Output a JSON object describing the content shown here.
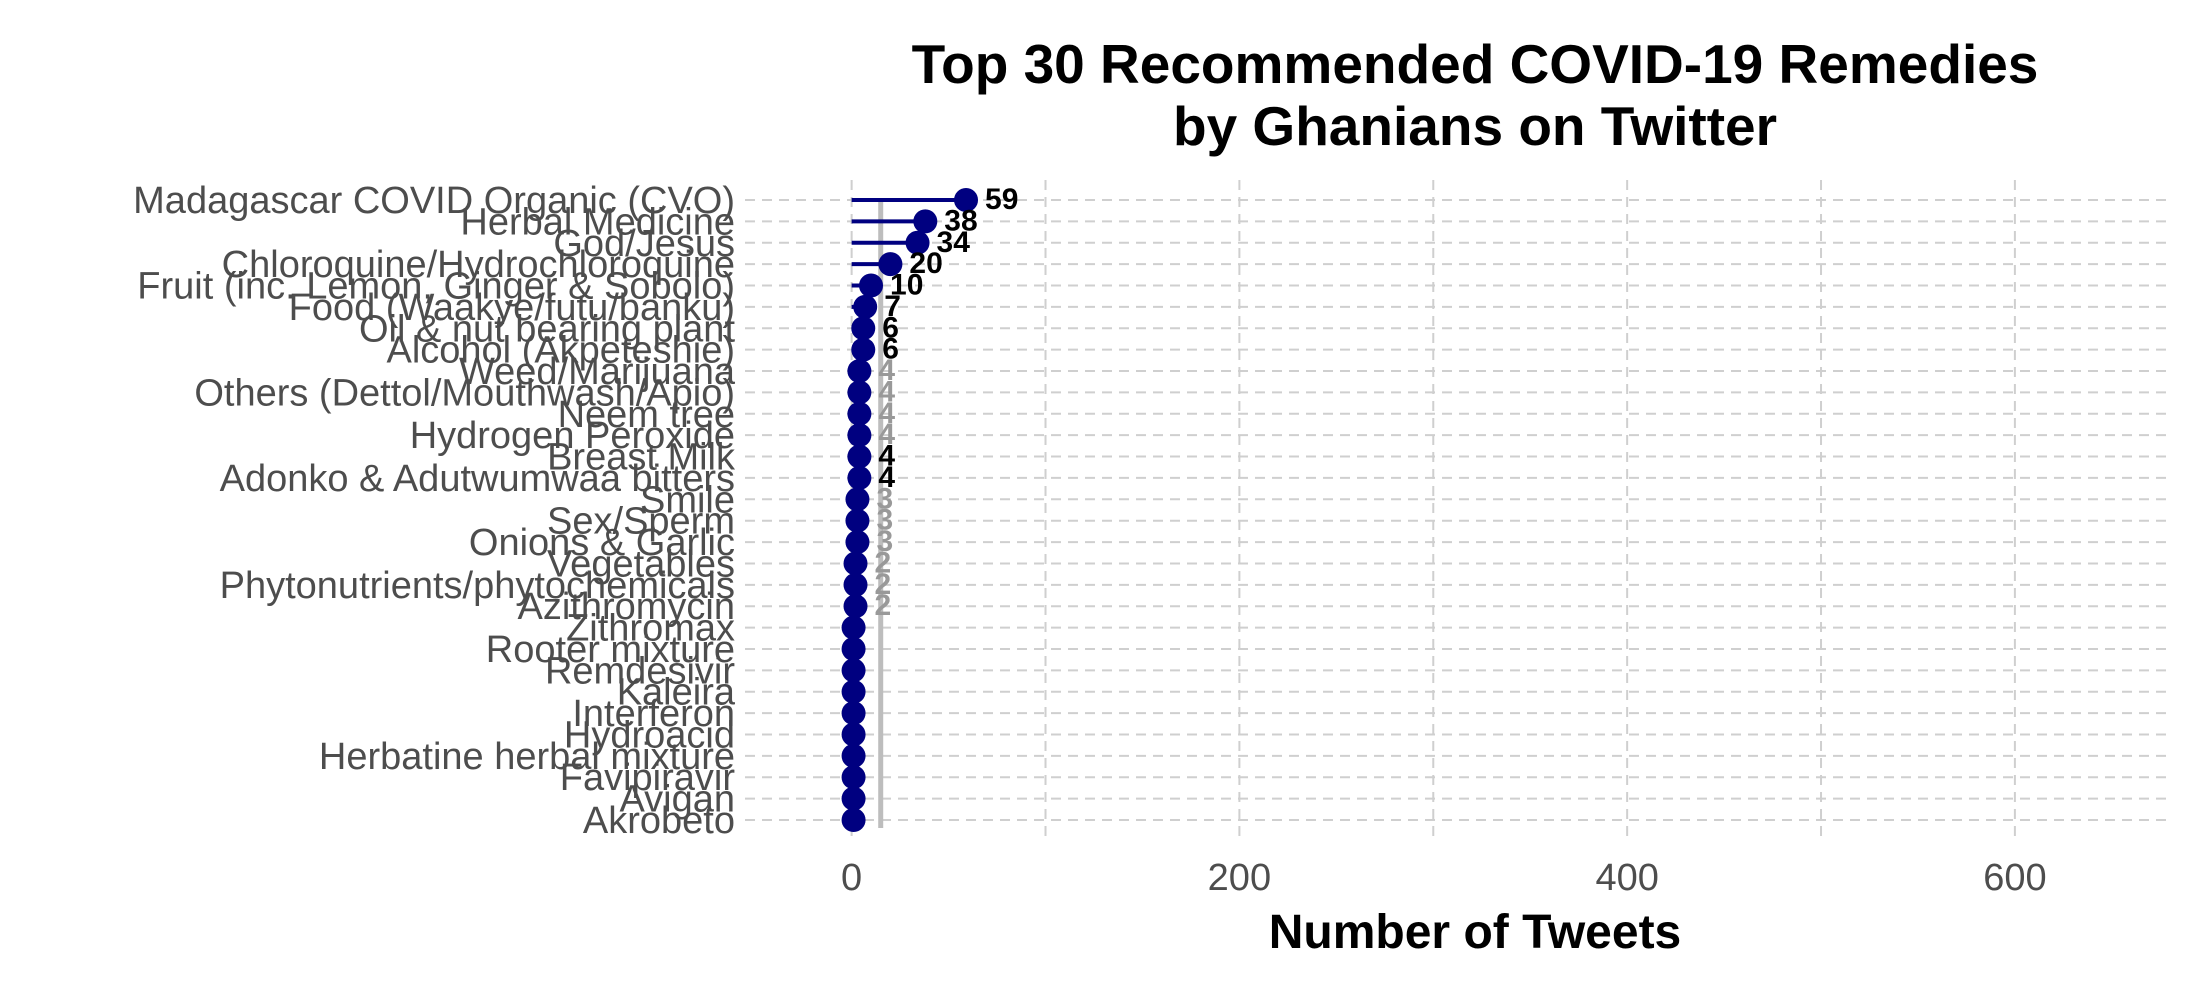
{
  "colors": {
    "accent": "#000080",
    "grid": "#cfcfcf",
    "zero_line": "#bdbdbd",
    "label_dark": "#000000",
    "label_light": "#999999",
    "tick_text": "#4d4d4d"
  },
  "chart_data": {
    "type": "lollipop",
    "orientation": "horizontal",
    "title_line1": "Top 30 Recommended COVID-19 Remedies",
    "title_line2": "by Ghanians on Twitter",
    "xlabel": "Number of Tweets",
    "ylabel": "",
    "xlim": [
      -55,
      680
    ],
    "x_ticks": [
      0,
      200,
      400,
      600
    ],
    "grid": "dashed",
    "categories": [
      "Madagascar COVID Organic (CVO)",
      "Herbal Medicine",
      "God/Jesus",
      "Chloroquine/Hydrochloroquine",
      "Fruit (inc. Lemon, Ginger & Sobolo)",
      "Food (Waakye/futu/banku)",
      "Oil & nut bearing plant",
      "Alcohol (Akpeteshie)",
      "Weed/Marijuana",
      "Others (Dettol/Mouthwash/Apio)",
      "Neem tree",
      "Hydrogen Peroxide",
      "Breast Milk",
      "Adonko & Adutwumwaa bitters",
      "Smile",
      "Sex/Sperm",
      "Onions & Garlic",
      "Vegetables",
      "Phytonutrients/phytochemicals",
      "Azithromycin",
      "Zithromax",
      "Rooter mixture",
      "Remdesivir",
      "Kaleira",
      "Interferon",
      "Hydroacid",
      "Herbatine herbal mixture",
      "Favipiravir",
      "Avigan",
      "Akrobeto"
    ],
    "values": [
      59,
      38,
      34,
      20,
      10,
      7,
      6,
      6,
      4,
      4,
      4,
      4,
      4,
      4,
      3,
      3,
      3,
      2,
      2,
      2,
      1,
      1,
      1,
      1,
      1,
      1,
      1,
      1,
      1,
      1
    ],
    "data_labels": [
      "59",
      "38",
      "34",
      "20",
      "10",
      "7",
      "6",
      "6",
      "4",
      "4",
      "4",
      "4",
      "4",
      "4",
      "3",
      "3",
      "3",
      "2",
      "2",
      "2",
      "",
      "",
      "",
      "",
      "",
      "",
      "",
      "",
      "",
      ""
    ],
    "label_emphasis": [
      "dark",
      "dark",
      "dark",
      "dark",
      "dark",
      "dark",
      "dark",
      "dark",
      "light",
      "light",
      "light",
      "light",
      "dark",
      "dark",
      "light",
      "light",
      "light",
      "light",
      "light",
      "light",
      "light",
      "light",
      "light",
      "light",
      "light",
      "light",
      "light",
      "light",
      "light",
      "light"
    ]
  }
}
